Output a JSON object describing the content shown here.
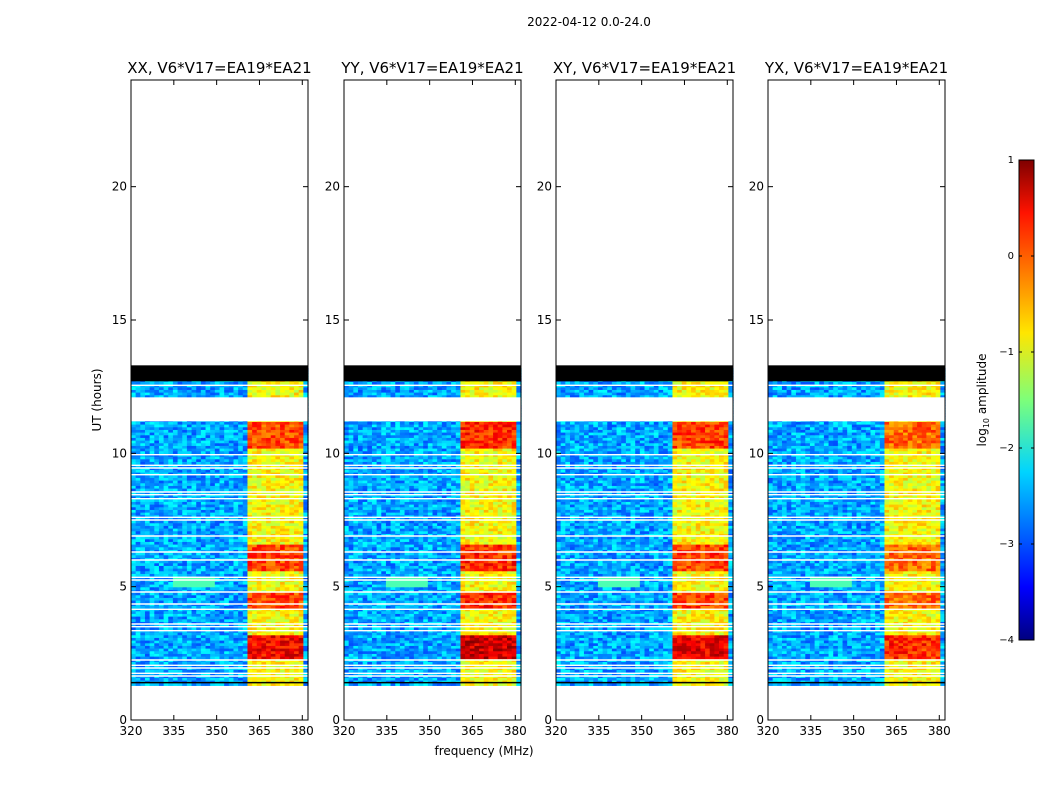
{
  "figure": {
    "suptitle": "2022-04-12 0.0-24.0",
    "xlabel": "frequency (MHz)",
    "ylabel": "UT (hours)"
  },
  "chart_data": {
    "type": "heatmap",
    "title": "2022-04-12 0.0-24.0",
    "xlabel": "frequency (MHz)",
    "ylabel": "UT (hours)",
    "xlim": [
      320,
      382
    ],
    "ylim": [
      0,
      24
    ],
    "xticks": [
      320,
      335,
      350,
      365,
      380
    ],
    "yticks": [
      0,
      5,
      10,
      15,
      20
    ],
    "panels": [
      {
        "title": "XX, V6*V17=EA19*EA21",
        "pol": "XX",
        "rfi_strength": 0.85
      },
      {
        "title": "YY, V6*V17=EA19*EA21",
        "pol": "YY",
        "rfi_strength": 1.0
      },
      {
        "title": "XY, V6*V17=EA19*EA21",
        "pol": "XY",
        "rfi_strength": 0.9
      },
      {
        "title": "YX, V6*V17=EA19*EA21",
        "pol": "YX",
        "rfi_strength": 0.7
      }
    ],
    "data_start_hours": 1.3,
    "data_end_hours": 13.2,
    "flagged_black_band_hours": [
      12.7,
      13.3
    ],
    "flagged_gap_hours": [
      11.2,
      12.1
    ],
    "rfi_band_mhz": [
      361,
      381
    ],
    "colorbar": {
      "label": "log10 amplitude",
      "label_base": "log",
      "label_sub": "10",
      "label_rest": " amplitude",
      "min": -4,
      "max": 1,
      "ticks": [
        -4,
        -3,
        -2,
        -1,
        0,
        1
      ],
      "tick_labels": [
        "−4",
        "−3",
        "−2",
        "−1",
        "0",
        "1"
      ],
      "colormap": "jet"
    }
  }
}
